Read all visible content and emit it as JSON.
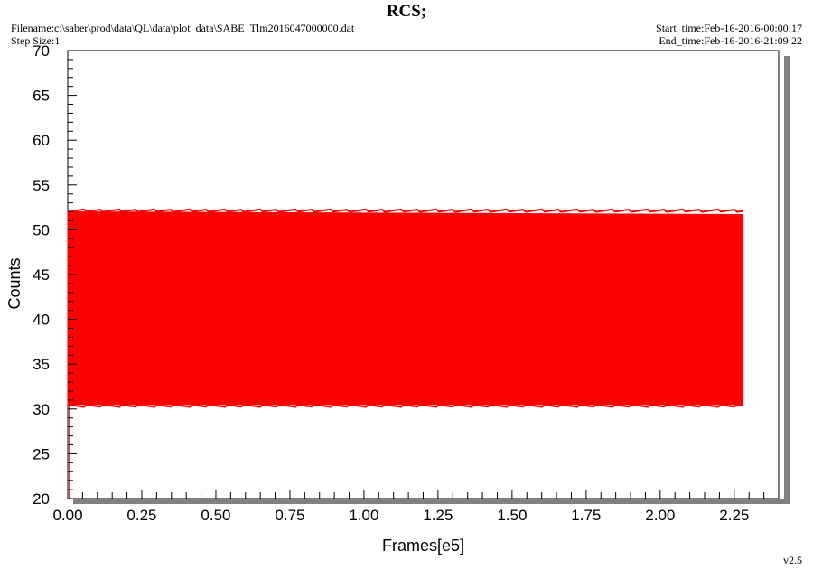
{
  "header": {
    "title": "RCS;",
    "filename": "Filename:c:\\saber\\prod\\data\\QL\\data\\plot_data\\SABE_Tlm2016047000000.dat",
    "step_size": "Step Size:1",
    "start_time": "Start_time:Feb-16-2016-00:00:17",
    "end_time": "End_time:Feb-16-2016-21:09:22"
  },
  "footer": {
    "version": "v2.5"
  },
  "chart_data": {
    "type": "area",
    "title": "RCS;",
    "xlabel": "Frames[e5]",
    "ylabel": "Counts",
    "xlim": [
      0,
      2.4
    ],
    "ylim": [
      20,
      70
    ],
    "x_ticks": [
      "0.00",
      "0.25",
      "0.50",
      "0.75",
      "1.00",
      "1.25",
      "1.50",
      "1.75",
      "2.00",
      "2.25"
    ],
    "y_ticks": [
      "20",
      "25",
      "30",
      "35",
      "40",
      "45",
      "50",
      "55",
      "60",
      "65",
      "70"
    ],
    "grid": false,
    "color": "#ff0000",
    "series": [
      {
        "x": [
          0.0,
          2.28
        ],
        "y_min": [
          30.5,
          30.5
        ],
        "y_max": [
          52.0,
          51.7
        ]
      }
    ]
  }
}
